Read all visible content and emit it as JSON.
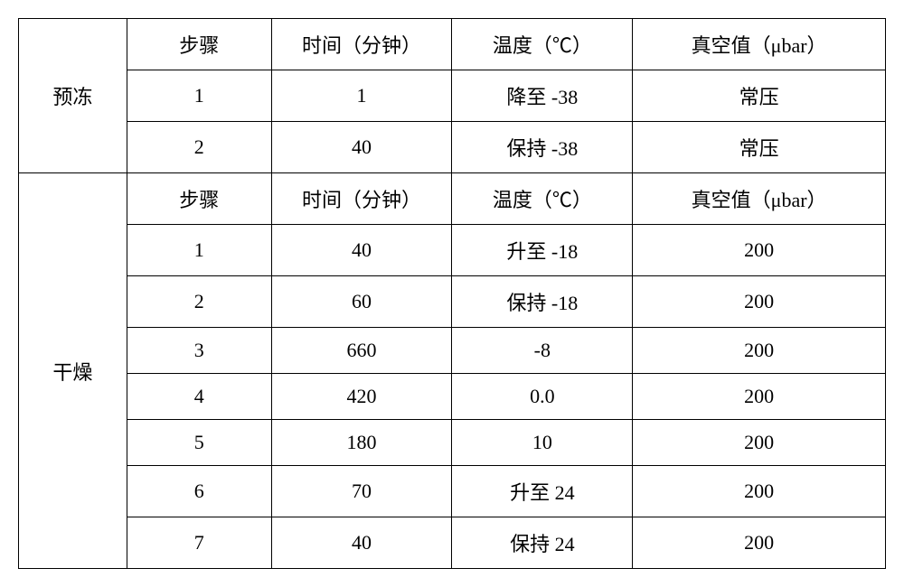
{
  "table": {
    "columns": [
      "步骤",
      "时间（分钟）",
      "温度（℃）",
      "真空值（μbar）"
    ],
    "sections": [
      {
        "label": "预冻",
        "rows": [
          [
            "1",
            "1",
            "降至 -38",
            "常压"
          ],
          [
            "2",
            "40",
            "保持 -38",
            "常压"
          ]
        ]
      },
      {
        "label": "干燥",
        "rows": [
          [
            "1",
            "40",
            "升至 -18",
            "200"
          ],
          [
            "2",
            "60",
            "保持 -18",
            "200"
          ],
          [
            "3",
            "660",
            "-8",
            "200"
          ],
          [
            "4",
            "420",
            "0.0",
            "200"
          ],
          [
            "5",
            "180",
            "10",
            "200"
          ],
          [
            "6",
            "70",
            "升至 24",
            "200"
          ],
          [
            "7",
            "40",
            "保持 24",
            "200"
          ]
        ]
      }
    ],
    "font_size": 22,
    "border_color": "#000000",
    "background_color": "#ffffff",
    "text_color": "#000000"
  }
}
